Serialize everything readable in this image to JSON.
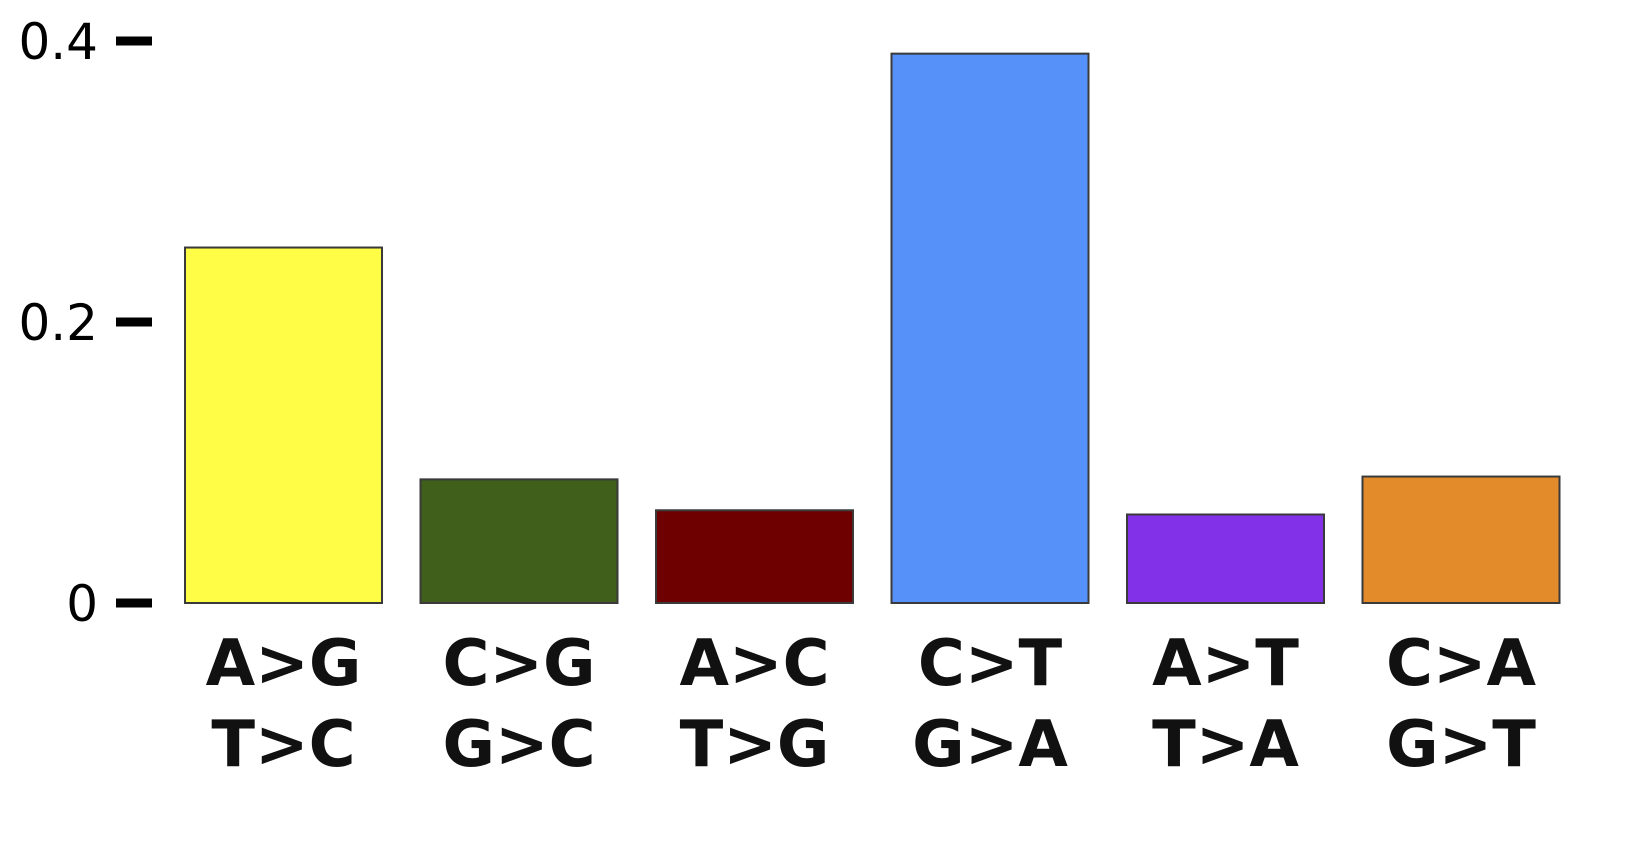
{
  "chart_data": {
    "type": "bar",
    "categories": [
      [
        "A>G",
        "T>C"
      ],
      [
        "C>G",
        "G>C"
      ],
      [
        "A>C",
        "T>G"
      ],
      [
        "C>T",
        "G>A"
      ],
      [
        "A>T",
        "T>A"
      ],
      [
        "C>A",
        "G>T"
      ]
    ],
    "values": [
      0.253,
      0.088,
      0.066,
      0.391,
      0.063,
      0.09
    ],
    "colors": [
      "#FFFD45",
      "#3F5F1B",
      "#6F0000",
      "#5591F8",
      "#8331E8",
      "#E38A2A"
    ],
    "yticks": [
      {
        "value": 0,
        "label": "0"
      },
      {
        "value": 0.2,
        "label": "0.2"
      },
      {
        "value": 0.4,
        "label": "0.4"
      }
    ],
    "ylim": [
      0,
      0.4
    ],
    "title": "",
    "xlabel": "",
    "ylabel": "",
    "grid": false,
    "legend": "none"
  }
}
